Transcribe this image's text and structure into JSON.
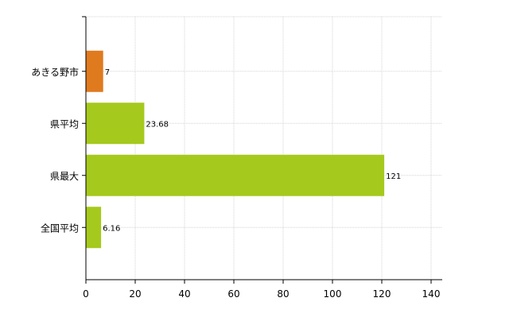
{
  "chart_data": {
    "type": "bar",
    "orientation": "horizontal",
    "categories": [
      "あきる野市",
      "県平均",
      "県最大",
      "全国平均"
    ],
    "values": [
      7,
      23.68,
      121,
      6.16
    ],
    "value_labels": [
      "7",
      "23.68",
      "121",
      "6.16"
    ],
    "bar_colors": [
      "#E07A1F",
      "#A5C91C",
      "#A5C91C",
      "#A5C91C"
    ],
    "xlim": [
      0,
      140
    ],
    "x_ticks": [
      0,
      20,
      40,
      60,
      80,
      100,
      120,
      140
    ],
    "grid": true,
    "title": "",
    "xlabel": "",
    "ylabel": ""
  }
}
